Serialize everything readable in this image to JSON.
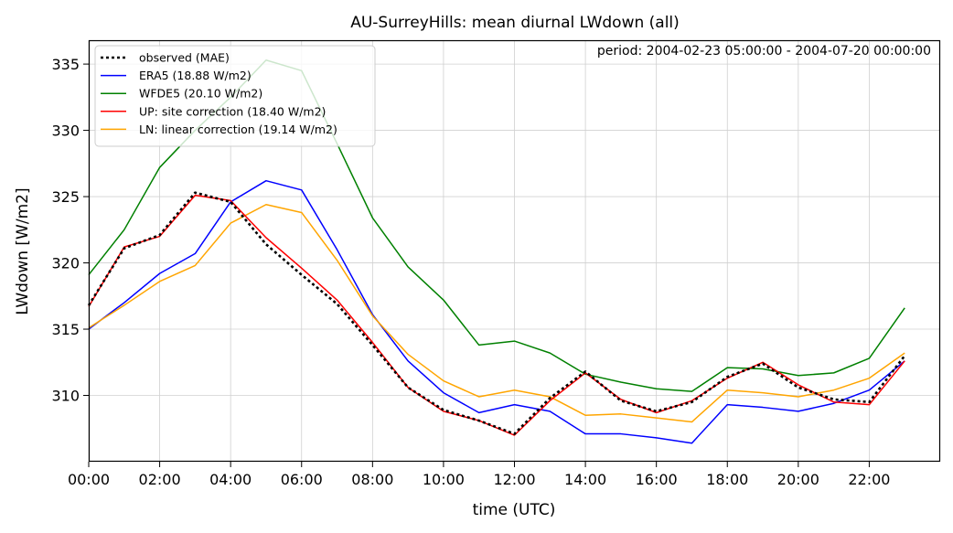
{
  "chart_data": {
    "type": "line",
    "title": "AU-SurreyHills: mean diurnal LWdown (all)",
    "annotation": "period: 2004-02-23 05:00:00 - 2004-07-20 00:00:00",
    "xlabel": "time (UTC)",
    "ylabel": "LWdown [W/m2]",
    "xlim": [
      0,
      24
    ],
    "ylim": [
      305,
      336.8
    ],
    "grid": true,
    "legend_position": "top-left",
    "x": [
      0,
      1,
      2,
      3,
      4,
      5,
      6,
      7,
      8,
      9,
      10,
      11,
      12,
      13,
      14,
      15,
      16,
      17,
      18,
      19,
      20,
      21,
      22,
      23
    ],
    "x_ticks": [
      0,
      2,
      4,
      6,
      8,
      10,
      12,
      14,
      16,
      18,
      20,
      22
    ],
    "x_tick_labels": [
      "00:00",
      "02:00",
      "04:00",
      "06:00",
      "08:00",
      "10:00",
      "12:00",
      "14:00",
      "16:00",
      "18:00",
      "20:00",
      "22:00"
    ],
    "y_ticks": [
      310,
      315,
      320,
      325,
      330,
      335
    ],
    "y_tick_labels": [
      "310",
      "315",
      "320",
      "325",
      "330",
      "335"
    ],
    "series": [
      {
        "name": "observed (MAE)",
        "color": "#000000",
        "style": "dotted",
        "values": [
          316.8,
          321.1,
          322.1,
          325.3,
          324.6,
          321.4,
          319.1,
          316.9,
          313.8,
          310.6,
          308.9,
          308.1,
          307.1,
          309.8,
          311.8,
          309.6,
          308.8,
          309.5,
          311.4,
          312.4,
          310.6,
          309.7,
          309.5,
          313.0
        ]
      },
      {
        "name": "ERA5 (18.88 W/m2)",
        "color": "#0000ff",
        "style": "solid",
        "values": [
          315.0,
          317.0,
          319.2,
          320.7,
          324.6,
          326.2,
          325.5,
          321.0,
          316.1,
          312.6,
          310.2,
          308.7,
          309.3,
          308.8,
          307.1,
          307.1,
          306.8,
          306.4,
          309.3,
          309.1,
          308.8,
          309.4,
          310.4,
          312.6
        ]
      },
      {
        "name": "WFDE5 (20.10 W/m2)",
        "color": "#008000",
        "style": "solid",
        "values": [
          319.1,
          322.5,
          327.2,
          330.0,
          332.5,
          335.3,
          334.5,
          329.0,
          323.4,
          319.7,
          317.2,
          313.8,
          314.1,
          313.2,
          311.6,
          311.0,
          310.5,
          310.3,
          312.1,
          312.0,
          311.5,
          311.7,
          312.8,
          316.6
        ]
      },
      {
        "name": "UP: site correction (18.40 W/m2)",
        "color": "#ff0000",
        "style": "solid",
        "values": [
          316.7,
          321.2,
          322.0,
          325.1,
          324.7,
          321.9,
          319.6,
          317.2,
          314.0,
          310.6,
          308.8,
          308.1,
          307.0,
          309.6,
          311.7,
          309.7,
          308.7,
          309.6,
          311.3,
          312.5,
          310.8,
          309.5,
          309.3,
          312.6
        ]
      },
      {
        "name": "LN: linear correction (19.14 W/m2)",
        "color": "#ffa500",
        "style": "solid",
        "values": [
          315.1,
          316.8,
          318.6,
          319.8,
          323.0,
          324.4,
          323.8,
          320.2,
          316.0,
          313.1,
          311.1,
          309.9,
          310.4,
          309.9,
          308.5,
          308.6,
          308.3,
          308.0,
          310.4,
          310.2,
          309.9,
          310.4,
          311.3,
          313.2
        ]
      }
    ]
  }
}
